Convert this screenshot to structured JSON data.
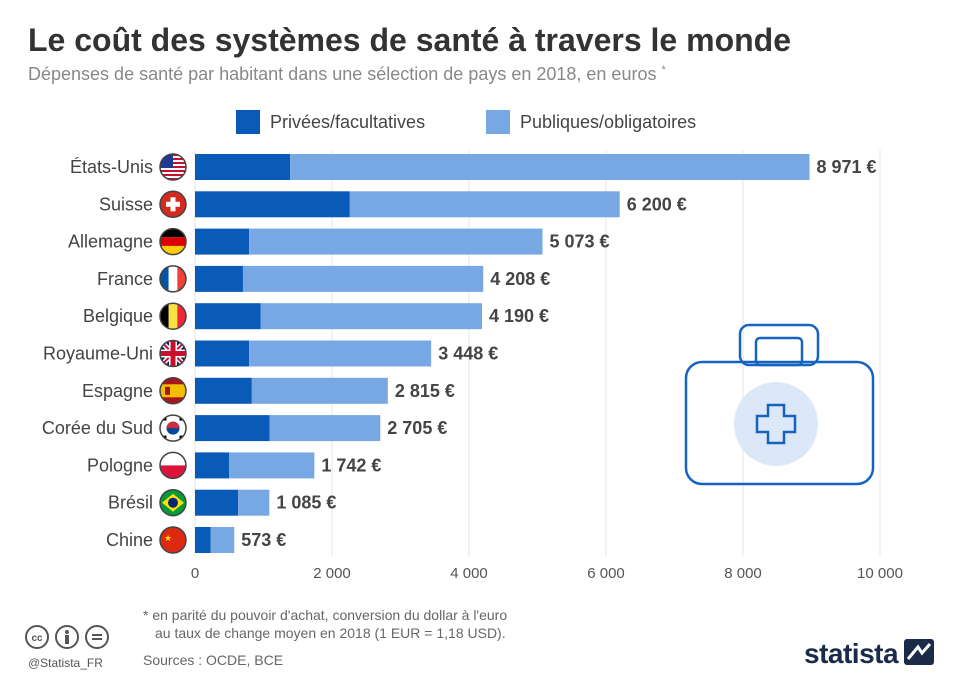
{
  "header": {
    "title": "Le coût des systèmes de santé à travers le monde",
    "subtitle": "Dépenses de santé par habitant dans une sélection de pays en 2018, en euros",
    "subtitle_mark": "*"
  },
  "colors": {
    "private": "#0a5bb8",
    "public": "#78a8e4",
    "text": "#333333",
    "grid": "#e6e6e6",
    "icon": "#1565c0",
    "icon_bg": "#dce8f8"
  },
  "chart_data": {
    "type": "bar",
    "orientation": "horizontal",
    "stacked": true,
    "categories": [
      "États-Unis",
      "Suisse",
      "Allemagne",
      "France",
      "Belgique",
      "Royaume-Uni",
      "Espagne",
      "Corée du Sud",
      "Pologne",
      "Brésil",
      "Chine"
    ],
    "series": [
      {
        "name": "Privées/facultatives",
        "values": [
          1390,
          2260,
          790,
          700,
          960,
          790,
          830,
          1090,
          500,
          630,
          230
        ]
      },
      {
        "name": "Publiques/obligatoires",
        "values": [
          7581,
          3940,
          4283,
          3508,
          3230,
          2658,
          1985,
          1615,
          1242,
          455,
          343
        ]
      }
    ],
    "totals": [
      8971,
      6200,
      5073,
      4208,
      4190,
      3448,
      2815,
      2705,
      1742,
      1085,
      573
    ],
    "total_labels": [
      "8 971 €",
      "6 200 €",
      "5 073 €",
      "4 208 €",
      "4 190 €",
      "3 448 €",
      "2 815 €",
      "2 705 €",
      "1 742 €",
      "1 085 €",
      "573 €"
    ],
    "flags": [
      "us-flag-icon",
      "ch-flag-icon",
      "de-flag-icon",
      "fr-flag-icon",
      "be-flag-icon",
      "gb-flag-icon",
      "es-flag-icon",
      "kr-flag-icon",
      "pl-flag-icon",
      "br-flag-icon",
      "cn-flag-icon"
    ],
    "xlim": [
      0,
      10000
    ],
    "xticks": [
      0,
      2000,
      4000,
      6000,
      8000,
      10000
    ],
    "xtick_labels": [
      "0",
      "2 000",
      "4 000",
      "6 000",
      "8 000",
      "10 000"
    ],
    "grid": true,
    "legend_position": "top"
  },
  "footer": {
    "footnote_line1": "* en parité du pouvoir d'achat, conversion du dollar à l'euro",
    "footnote_line2": "au taux de change moyen en 2018 (1 EUR = 1,18 USD).",
    "sources": "Sources : OCDE, BCE",
    "handle": "@Statista_FR",
    "brand": "statista"
  }
}
